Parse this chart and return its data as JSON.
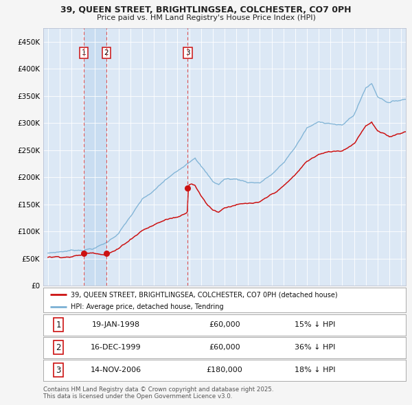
{
  "title": "39, QUEEN STREET, BRIGHTLINGSEA, COLCHESTER, CO7 0PH",
  "subtitle": "Price paid vs. HM Land Registry's House Price Index (HPI)",
  "bg_color": "#f5f5f5",
  "plot_bg_color": "#dce8f5",
  "legend_entries": [
    "39, QUEEN STREET, BRIGHTLINGSEA, COLCHESTER, CO7 0PH (detached house)",
    "HPI: Average price, detached house, Tendring"
  ],
  "transactions": [
    {
      "num": 1,
      "date": "19-JAN-1998",
      "price": 60000,
      "pct": "15% ↓ HPI",
      "x": 1998.05
    },
    {
      "num": 2,
      "date": "16-DEC-1999",
      "price": 60000,
      "pct": "36% ↓ HPI",
      "x": 1999.96
    },
    {
      "num": 3,
      "date": "14-NOV-2006",
      "price": 180000,
      "pct": "18% ↓ HPI",
      "x": 2006.87
    }
  ],
  "footer": "Contains HM Land Registry data © Crown copyright and database right 2025.\nThis data is licensed under the Open Government Licence v3.0.",
  "hpi_color": "#7ab0d4",
  "price_color": "#cc1111",
  "dashed_color": "#dd4444",
  "ylim": [
    0,
    475000
  ],
  "xlim_start": 1994.6,
  "xlim_end": 2025.4
}
